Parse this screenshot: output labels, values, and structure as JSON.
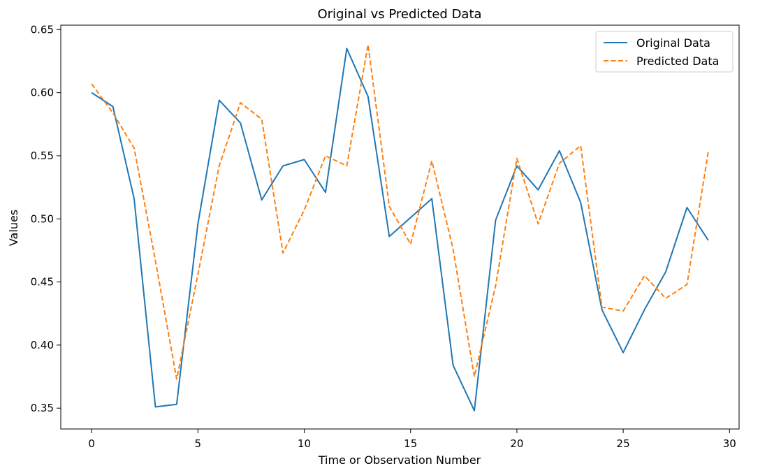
{
  "chart_data": {
    "type": "line",
    "title": "Original vs Predicted Data",
    "xlabel": "Time or Observation Number",
    "ylabel": "Values",
    "xlim": [
      -1.45,
      30.45
    ],
    "ylim": [
      0.3335,
      0.6535
    ],
    "xticks": [
      0,
      5,
      10,
      15,
      20,
      25,
      30
    ],
    "xtick_labels": [
      "0",
      "5",
      "10",
      "15",
      "20",
      "25",
      "30"
    ],
    "yticks": [
      0.35,
      0.4,
      0.45,
      0.5,
      0.55,
      0.6,
      0.65
    ],
    "ytick_labels": [
      "0.35",
      "0.40",
      "0.45",
      "0.50",
      "0.55",
      "0.60",
      "0.65"
    ],
    "grid": false,
    "legend_position": "top-right",
    "x": [
      0,
      1,
      2,
      3,
      4,
      5,
      6,
      7,
      8,
      9,
      10,
      11,
      12,
      13,
      14,
      15,
      16,
      17,
      18,
      19,
      20,
      21,
      22,
      23,
      24,
      25,
      26,
      27,
      28,
      29
    ],
    "series": [
      {
        "name": "Original Data",
        "color": "#1f77b4",
        "style": "solid",
        "values": [
          0.6,
          0.589,
          0.516,
          0.351,
          0.353,
          0.496,
          0.594,
          0.576,
          0.515,
          0.542,
          0.547,
          0.521,
          0.635,
          0.597,
          0.486,
          0.501,
          0.516,
          0.384,
          0.348,
          0.499,
          0.542,
          0.523,
          0.554,
          0.513,
          0.428,
          0.394,
          0.428,
          0.458,
          0.509,
          0.483
        ]
      },
      {
        "name": "Predicted Data",
        "color": "#ff7f0e",
        "style": "dashed",
        "values": [
          0.607,
          0.584,
          0.556,
          0.467,
          0.373,
          0.456,
          0.542,
          0.592,
          0.579,
          0.473,
          0.507,
          0.55,
          0.542,
          0.638,
          0.51,
          0.48,
          0.546,
          0.476,
          0.375,
          0.447,
          0.548,
          0.496,
          0.544,
          0.558,
          0.43,
          0.427,
          0.455,
          0.437,
          0.448,
          0.553
        ]
      }
    ]
  }
}
